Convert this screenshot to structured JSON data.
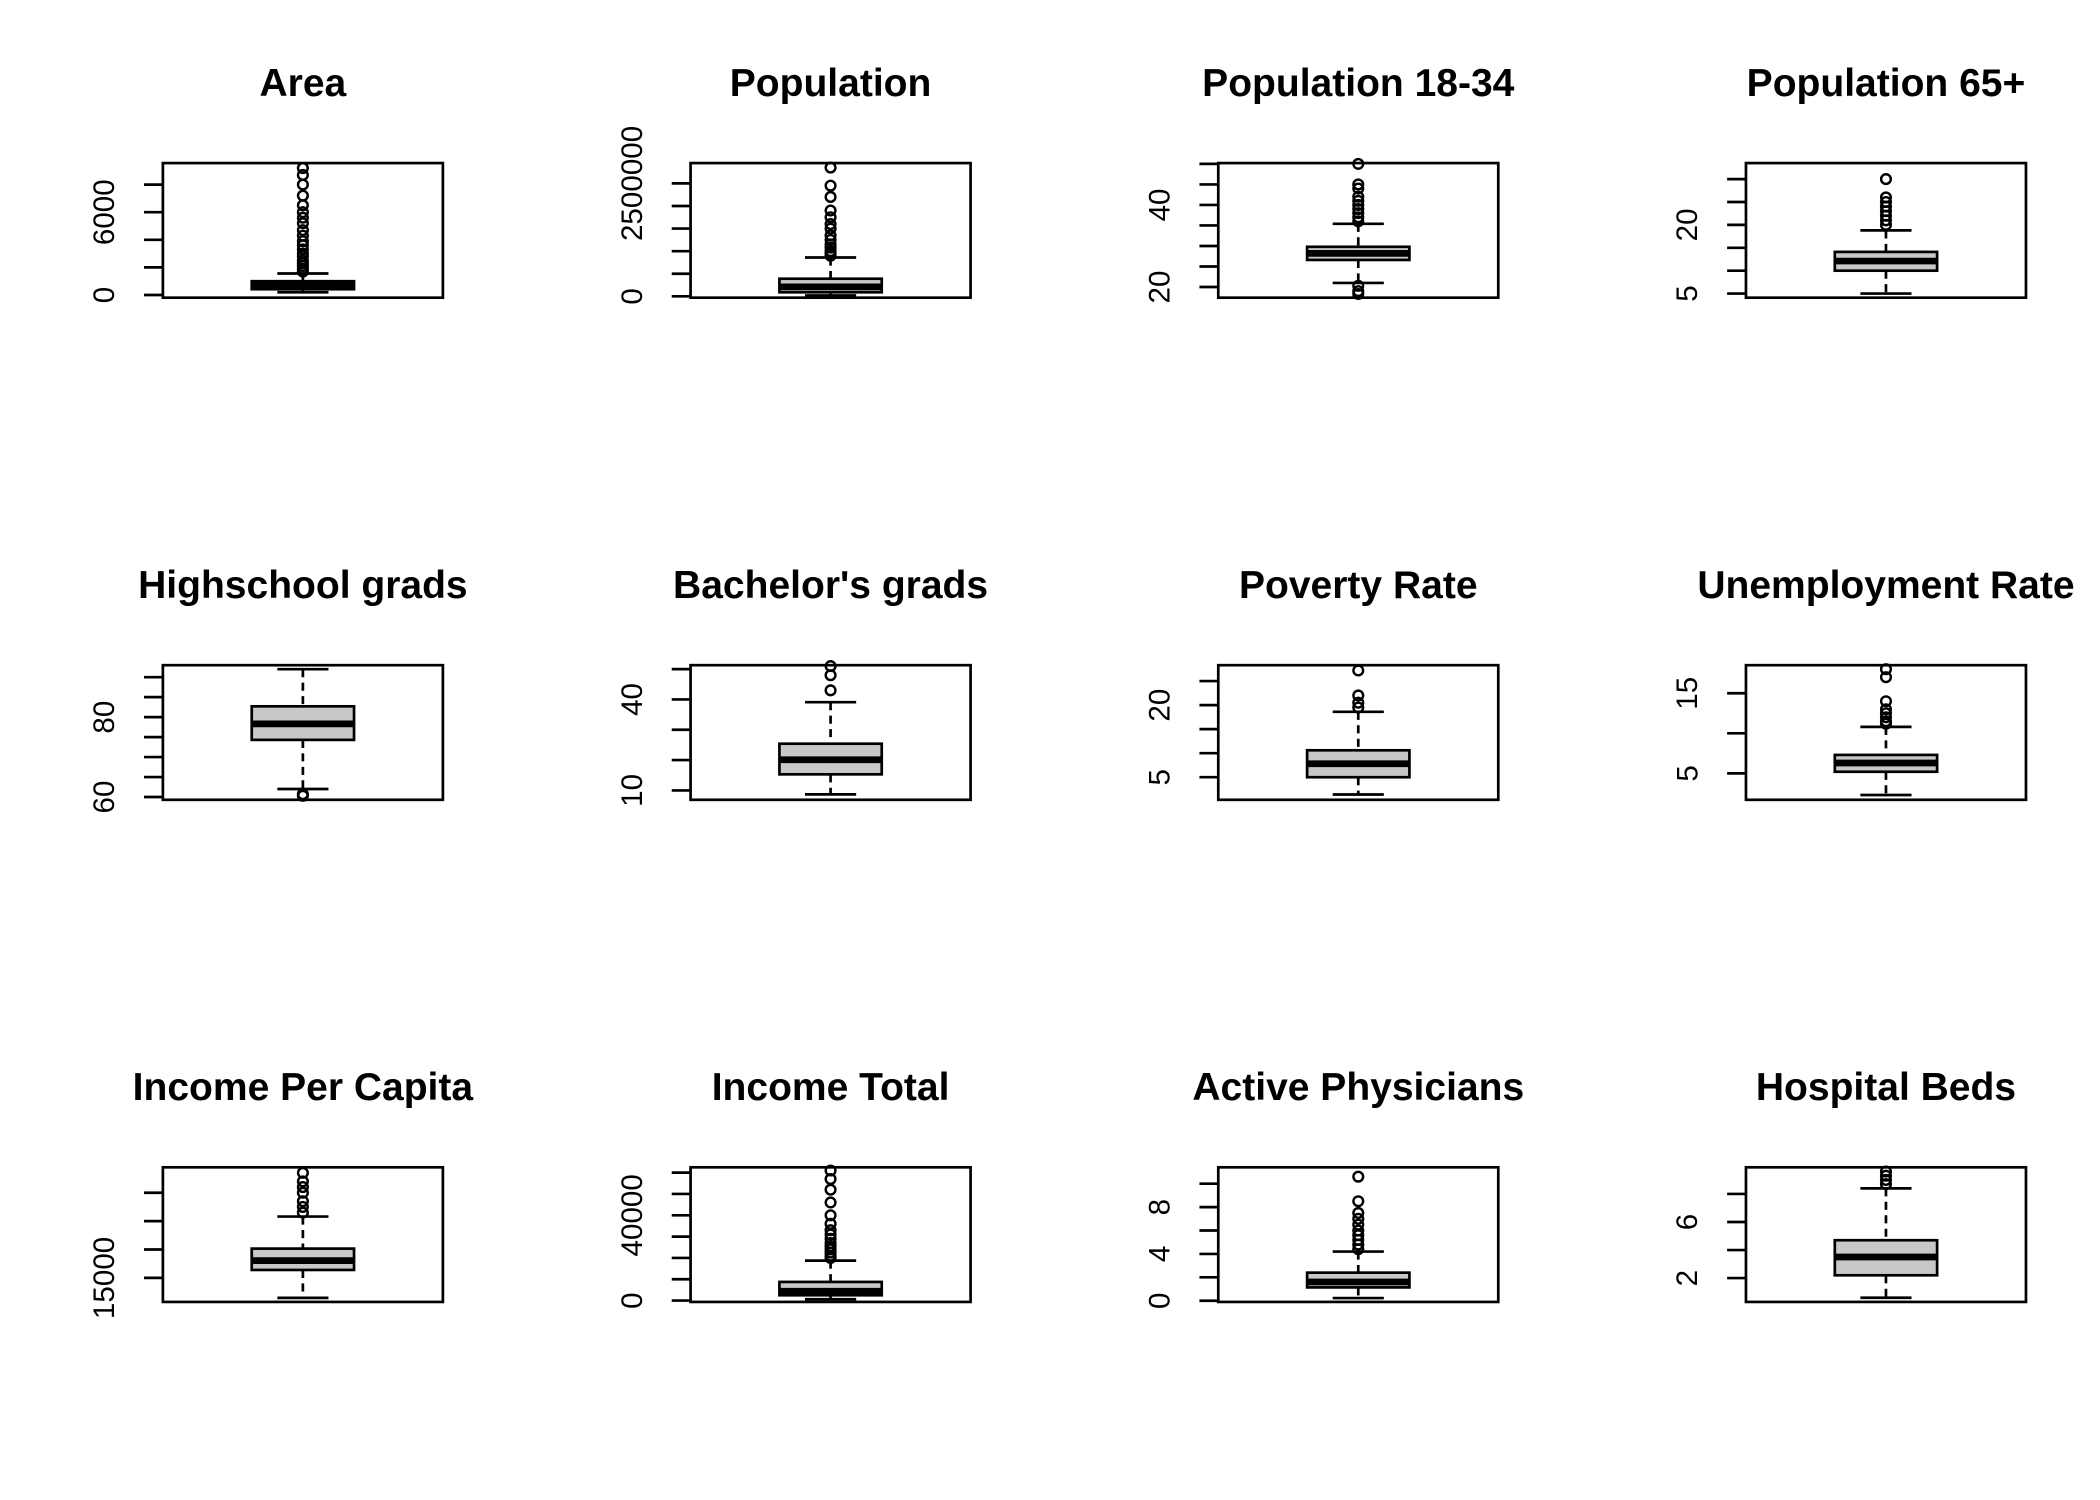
{
  "chart_data": [
    {
      "type": "box",
      "title": "Area",
      "color": "#c8c8c8",
      "ylim": [
        -195,
        9560
      ],
      "yticks": [
        0,
        {
          "value": 2000,
          "label": null
        },
        {
          "value": 4000,
          "label": null
        },
        6000,
        {
          "value": 8000,
          "label": null
        }
      ],
      "low": 200,
      "q1": 420,
      "median": 700,
      "q3": 1000,
      "high": 1560,
      "outliers": [
        1700,
        1900,
        2100,
        2300,
        2500,
        2800,
        3000,
        3300,
        3600,
        3900,
        4300,
        4700,
        5200,
        5600,
        6000,
        6500,
        7200,
        8000,
        8700,
        9200
      ]
    },
    {
      "type": "box",
      "title": "Population",
      "color": "#c8c8c8",
      "ylim": [
        -30000,
        2950000
      ],
      "yticks": [
        0,
        {
          "value": 500000,
          "label": null
        },
        {
          "value": 1000000,
          "label": null
        },
        {
          "value": 1500000,
          "label": null
        },
        {
          "value": 2000000,
          "label": null
        },
        2500000
      ],
      "low": 20000,
      "q1": 90000,
      "median": 210000,
      "q3": 390000,
      "high": 860000,
      "outliers": [
        900000,
        950000,
        1000000,
        1080000,
        1150000,
        1250000,
        1350000,
        1500000,
        1600000,
        1750000,
        1900000,
        2200000,
        2450000,
        2850000
      ]
    },
    {
      "type": "box",
      "title": "Population 18-34",
      "color": "#c8c8c8",
      "ylim": [
        17.4,
        50.2
      ],
      "yticks": [
        20,
        {
          "value": 25,
          "label": null
        },
        {
          "value": 30,
          "label": null
        },
        {
          "value": 35,
          "label": null
        },
        40,
        {
          "value": 45,
          "label": null
        },
        {
          "value": 50,
          "label": null
        }
      ],
      "low": 21,
      "q1": 26.6,
      "median": 28.2,
      "q3": 29.8,
      "high": 35.4,
      "outliers": [
        20.3,
        19,
        18.3,
        36,
        37,
        38,
        39,
        40,
        41,
        42,
        44,
        45,
        50
      ]
    },
    {
      "type": "box",
      "title": "Population 65+",
      "color": "#c8c8c8",
      "ylim": [
        4.1,
        33.5
      ],
      "yticks": [
        5,
        {
          "value": 10,
          "label": null
        },
        {
          "value": 15,
          "label": null
        },
        20,
        {
          "value": 25,
          "label": null
        },
        {
          "value": 30,
          "label": null
        }
      ],
      "low": 5,
      "q1": 10,
      "median": 12.1,
      "q3": 14.1,
      "high": 18.8,
      "outliers": [
        20,
        21,
        22,
        23,
        24,
        25,
        26,
        30
      ]
    },
    {
      "type": "box",
      "title": "Highschool grads",
      "color": "#c8c8c8",
      "ylim": [
        59.3,
        93
      ],
      "yticks": [
        60,
        {
          "value": 65,
          "label": null
        },
        {
          "value": 70,
          "label": null
        },
        {
          "value": 75,
          "label": null
        },
        80,
        {
          "value": 85,
          "label": null
        },
        {
          "value": 90,
          "label": null
        }
      ],
      "low": 62,
      "q1": 74.3,
      "median": 78.3,
      "q3": 82.7,
      "high": 92,
      "outliers": [
        60.3,
        60.7
      ]
    },
    {
      "type": "box",
      "title": "Bachelor's grads",
      "color": "#c8c8c8",
      "ylim": [
        6.9,
        51.3
      ],
      "yticks": [
        10,
        {
          "value": 20,
          "label": null
        },
        {
          "value": 30,
          "label": null
        },
        40,
        {
          "value": 50,
          "label": null
        }
      ],
      "low": 8.7,
      "q1": 15.3,
      "median": 20.1,
      "q3": 25.4,
      "high": 39.1,
      "outliers": [
        43,
        48,
        51
      ]
    },
    {
      "type": "box",
      "title": "Poverty Rate",
      "color": "#c8c8c8",
      "ylim": [
        0.3,
        28.3
      ],
      "yticks": [
        5,
        {
          "value": 10,
          "label": null
        },
        {
          "value": 15,
          "label": null
        },
        20,
        {
          "value": 25,
          "label": null
        }
      ],
      "low": 1.4,
      "q1": 5,
      "median": 7.8,
      "q3": 10.6,
      "high": 18.6,
      "outliers": [
        19.5,
        20.5,
        22,
        27.2
      ]
    },
    {
      "type": "box",
      "title": "Unemployment Rate",
      "color": "#c8c8c8",
      "ylim": [
        1.7,
        18.5
      ],
      "yticks": [
        5,
        {
          "value": 10,
          "label": null
        },
        15
      ],
      "low": 2.3,
      "q1": 5.2,
      "median": 6.3,
      "q3": 7.3,
      "high": 10.8,
      "outliers": [
        11.2,
        11.5,
        12,
        12.5,
        13,
        14,
        17,
        18
      ]
    },
    {
      "type": "box",
      "title": "Income Per Capita",
      "color": "#c8c8c8",
      "ylim": [
        10770,
        34480
      ],
      "yticks": [
        15000,
        {
          "value": 20000,
          "label": null
        },
        {
          "value": 25000,
          "label": null
        },
        {
          "value": 30000,
          "label": null
        }
      ],
      "low": 11480,
      "q1": 16400,
      "median": 18050,
      "q3": 20160,
      "high": 25800,
      "outliers": [
        26500,
        27500,
        28500,
        30000,
        31000,
        32000,
        33500
      ]
    },
    {
      "type": "box",
      "title": "Income Total",
      "color": "#c8c8c8",
      "ylim": [
        -625,
        62500
      ],
      "yticks": [
        0,
        {
          "value": 10000,
          "label": null
        },
        {
          "value": 20000,
          "label": null
        },
        {
          "value": 30000,
          "label": null
        },
        40000,
        {
          "value": 50000,
          "label": null
        },
        {
          "value": 60000,
          "label": null
        }
      ],
      "low": 625,
      "q1": 2500,
      "median": 4400,
      "q3": 8750,
      "high": 18750,
      "outliers": [
        20000,
        21000,
        22500,
        24000,
        25500,
        27000,
        29000,
        31000,
        33000,
        36000,
        40000,
        46000,
        52000,
        57000,
        61000
      ]
    },
    {
      "type": "box",
      "title": "Active Physicians",
      "color": "#c8c8c8",
      "ylim": [
        -0.1,
        11.4
      ],
      "yticks": [
        0,
        {
          "value": 2,
          "label": null
        },
        4,
        {
          "value": 6,
          "label": null
        },
        8,
        {
          "value": 10,
          "label": null
        }
      ],
      "low": 0.23,
      "q1": 1.14,
      "median": 1.6,
      "q3": 2.4,
      "high": 4.2,
      "outliers": [
        4.4,
        4.8,
        5.2,
        5.6,
        6,
        6.5,
        7,
        7.5,
        8.5,
        10.6
      ]
    },
    {
      "type": "box",
      "title": "Hospital Beds",
      "color": "#c8c8c8",
      "ylim": [
        0.3,
        9.9
      ],
      "yticks": [
        2,
        {
          "value": 4,
          "label": null
        },
        6,
        {
          "value": 8,
          "label": null
        }
      ],
      "low": 0.6,
      "q1": 2.2,
      "median": 3.5,
      "q3": 4.7,
      "high": 8.4,
      "outliers": [
        8.7,
        9.0,
        9.3,
        9.6
      ]
    }
  ]
}
